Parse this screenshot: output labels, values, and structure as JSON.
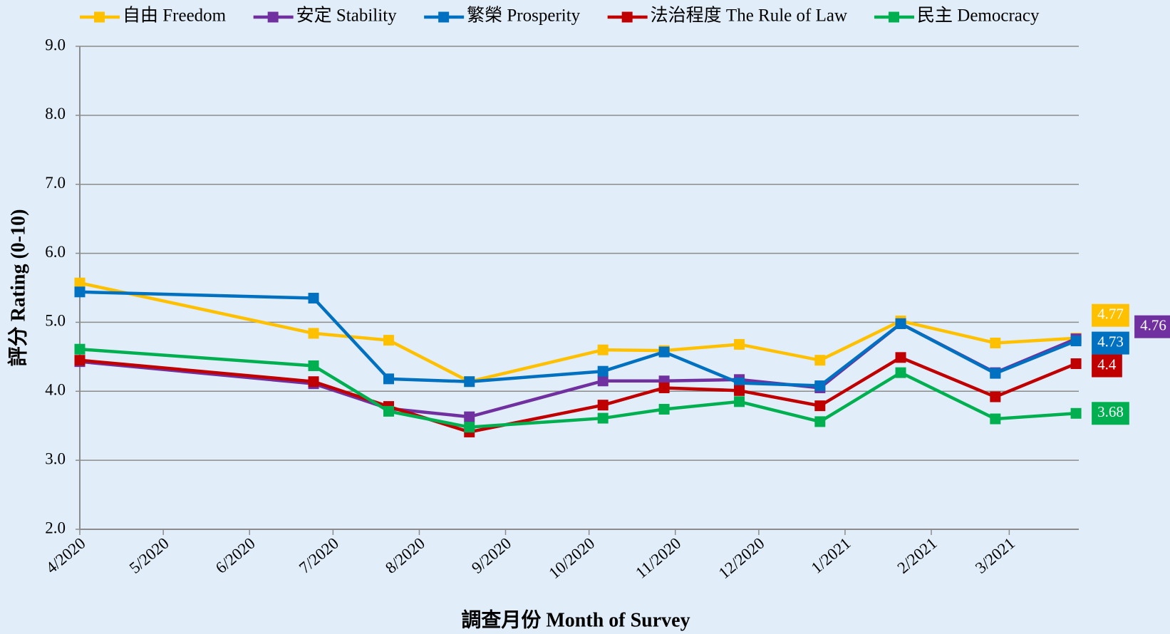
{
  "chart_data": {
    "type": "line",
    "x_label": "調查月份 Month of Survey",
    "y_label": "評分 Rating (0-10)",
    "x": [
      0,
      84,
      111,
      140,
      188,
      210,
      237,
      266,
      295,
      329,
      358
    ],
    "xlim": [
      0,
      359
    ],
    "xticks": [
      {
        "value": 0,
        "label": "4/2020"
      },
      {
        "value": 30,
        "label": "5/2020"
      },
      {
        "value": 61,
        "label": "6/2020"
      },
      {
        "value": 91,
        "label": "7/2020"
      },
      {
        "value": 122,
        "label": "8/2020"
      },
      {
        "value": 153,
        "label": "9/2020"
      },
      {
        "value": 183,
        "label": "10/2020"
      },
      {
        "value": 214,
        "label": "11/2020"
      },
      {
        "value": 244,
        "label": "12/2020"
      },
      {
        "value": 275,
        "label": "1/2021"
      },
      {
        "value": 306,
        "label": "2/2021"
      },
      {
        "value": 334,
        "label": "3/2021"
      }
    ],
    "ylim": [
      2,
      9
    ],
    "yticks": [
      {
        "value": 2,
        "label": "2.0"
      },
      {
        "value": 3,
        "label": "3.0"
      },
      {
        "value": 4,
        "label": "4.0"
      },
      {
        "value": 5,
        "label": "5.0"
      },
      {
        "value": 6,
        "label": "6.0"
      },
      {
        "value": 7,
        "label": "7.0"
      },
      {
        "value": 8,
        "label": "8.0"
      },
      {
        "value": 9,
        "label": "9.0"
      }
    ],
    "grid": true,
    "legend": "top",
    "series": [
      {
        "name": "自由 Freedom",
        "color": "#ffc000",
        "values": [
          5.57,
          4.84,
          4.74,
          4.14,
          4.6,
          4.59,
          4.68,
          4.45,
          5.02,
          4.7,
          4.77
        ]
      },
      {
        "name": "安定 Stability",
        "color": "#7030a0",
        "values": [
          4.43,
          4.11,
          3.75,
          3.63,
          4.15,
          4.15,
          4.17,
          4.05,
          4.98,
          4.27,
          4.76
        ]
      },
      {
        "name": "繁榮 Prosperity",
        "color": "#0070c0",
        "values": [
          5.44,
          5.35,
          4.18,
          4.14,
          4.29,
          4.57,
          4.12,
          4.08,
          4.98,
          4.26,
          4.73
        ]
      },
      {
        "name": "法治程度 The Rule of Law",
        "color": "#c00000",
        "values": [
          4.45,
          4.14,
          3.78,
          3.41,
          3.8,
          4.05,
          4.01,
          3.79,
          4.49,
          3.92,
          4.4
        ]
      },
      {
        "name": "民主 Democracy",
        "color": "#00b050",
        "values": [
          4.61,
          4.37,
          3.71,
          3.48,
          3.61,
          3.74,
          3.85,
          3.56,
          4.27,
          3.6,
          3.68
        ]
      }
    ]
  }
}
